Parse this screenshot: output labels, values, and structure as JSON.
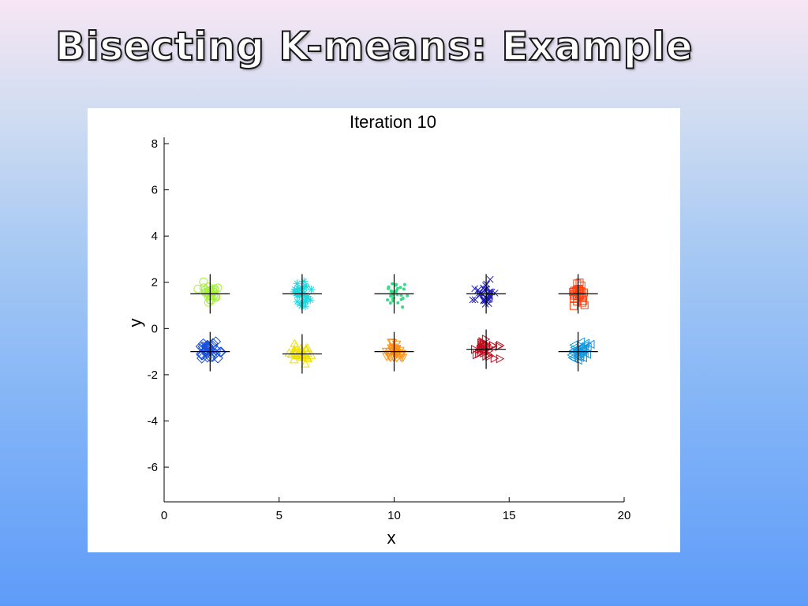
{
  "slide": {
    "title": "Bisecting K-means: Example"
  },
  "chart_data": {
    "type": "scatter",
    "title": "Iteration 10",
    "xlabel": "x",
    "ylabel": "y",
    "xlim": [
      0,
      20
    ],
    "ylim": [
      -7.5,
      8
    ],
    "xticks": [
      0,
      5,
      10,
      15,
      20
    ],
    "yticks": [
      8,
      6,
      4,
      2,
      0,
      -2,
      -4,
      -6
    ],
    "grid": false,
    "clusters": [
      {
        "marker": "circle",
        "color": "#a8f040",
        "centroid": [
          2,
          1.5
        ],
        "spread": [
          0.4,
          0.45
        ],
        "n": 30
      },
      {
        "marker": "asterisk",
        "color": "#22d8e0",
        "centroid": [
          6,
          1.5
        ],
        "spread": [
          0.35,
          0.5
        ],
        "n": 32
      },
      {
        "marker": "dot",
        "color": "#33dd88",
        "centroid": [
          10,
          1.5
        ],
        "spread": [
          0.55,
          0.45
        ],
        "n": 30
      },
      {
        "marker": "x",
        "color": "#1a1ab0",
        "centroid": [
          14,
          1.5
        ],
        "spread": [
          0.45,
          0.5
        ],
        "n": 30
      },
      {
        "marker": "square",
        "color": "#ff4010",
        "centroid": [
          18,
          1.5
        ],
        "spread": [
          0.35,
          0.45
        ],
        "n": 30
      },
      {
        "marker": "diamond",
        "color": "#1a50d8",
        "centroid": [
          2,
          -1
        ],
        "spread": [
          0.45,
          0.35
        ],
        "n": 32
      },
      {
        "marker": "triangle-up",
        "color": "#f0e000",
        "centroid": [
          6,
          -1.1
        ],
        "spread": [
          0.45,
          0.35
        ],
        "n": 32
      },
      {
        "marker": "triangle-down",
        "color": "#ff9010",
        "centroid": [
          10,
          -1
        ],
        "spread": [
          0.45,
          0.35
        ],
        "n": 32
      },
      {
        "marker": "triangle-right",
        "color": "#c01020",
        "centroid": [
          14,
          -0.9
        ],
        "spread": [
          0.55,
          0.4
        ],
        "n": 32
      },
      {
        "marker": "triangle-left",
        "color": "#1098e0",
        "centroid": [
          18,
          -1
        ],
        "spread": [
          0.45,
          0.4
        ],
        "n": 32
      }
    ]
  }
}
